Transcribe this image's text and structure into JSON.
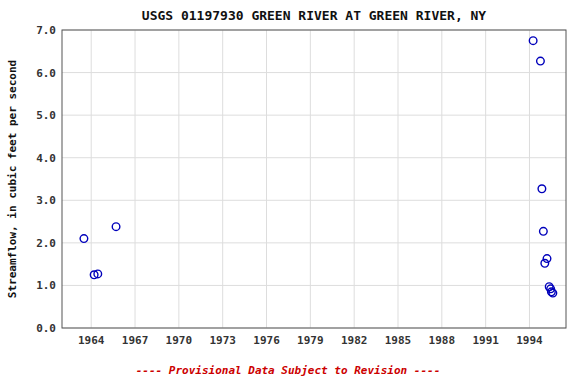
{
  "chart_data": {
    "type": "scatter",
    "title": "USGS 01197930 GREEN RIVER AT GREEN RIVER, NY",
    "ylabel": "Streamflow, in cubic feet per second",
    "x": [
      1963.5,
      1964.2,
      1964.45,
      1965.7,
      1994.25,
      1994.75,
      1994.85,
      1994.95,
      1995.05,
      1995.2,
      1995.35,
      1995.45,
      1995.5,
      1995.6
    ],
    "values": [
      2.1,
      1.25,
      1.27,
      2.38,
      6.75,
      6.27,
      3.27,
      2.27,
      1.52,
      1.63,
      0.97,
      0.92,
      0.85,
      0.82
    ],
    "color": "#0000bb",
    "marker": "open-circle",
    "xlim": [
      1962.0,
      1996.5
    ],
    "ylim": [
      0.0,
      7.0
    ],
    "xticks": [
      1964,
      1967,
      1970,
      1973,
      1976,
      1979,
      1982,
      1985,
      1988,
      1991,
      1994
    ],
    "yticks": [
      {
        "value": 0.0,
        "label": "0.0"
      },
      {
        "value": 1.0,
        "label": "1.0"
      },
      {
        "value": 2.0,
        "label": "2.0"
      },
      {
        "value": 3.0,
        "label": "3.0"
      },
      {
        "value": 4.0,
        "label": "4.0"
      },
      {
        "value": 5.0,
        "label": "5.0"
      },
      {
        "value": 6.0,
        "label": "6.0"
      },
      {
        "value": 7.0,
        "label": "7.0"
      }
    ],
    "grid": true,
    "annotations": [
      "---- Provisional Data Subject to Revision ----"
    ]
  }
}
